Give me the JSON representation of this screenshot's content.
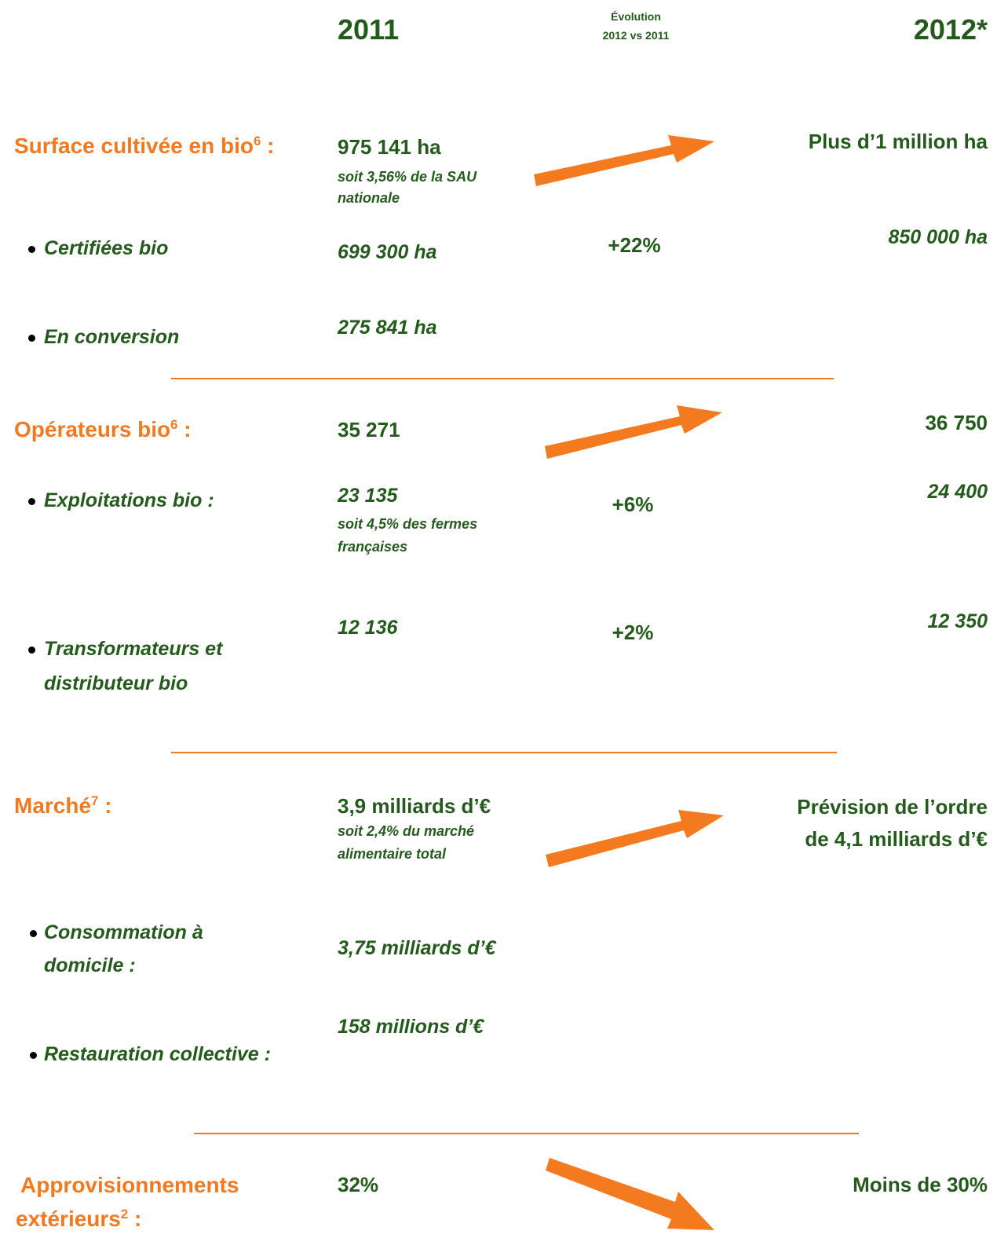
{
  "header": {
    "year_2011": "2011",
    "evolution": [
      "Évolution",
      "2012 vs 2011"
    ],
    "year_2012": "2012*"
  },
  "sections": [
    {
      "title": {
        "lines": [
          "Surface cultivée en bio"
        ],
        "sup": "6",
        "suffix": " :"
      },
      "value_2011": "975 141 ha",
      "note_2011": [
        "soit 3,56% de la SAU",
        "nationale"
      ],
      "value_2012": [
        "Plus d’1 million ha"
      ],
      "items": [
        {
          "label": [
            "Certifiées bio"
          ],
          "value_2011": "699 300 ha",
          "evolution": "+22%",
          "value_2012": "850 000 ha"
        },
        {
          "label": [
            "En conversion"
          ],
          "value_2011": "275 841 ha"
        }
      ]
    },
    {
      "title": {
        "lines": [
          "Opérateurs bio"
        ],
        "sup": "6",
        "suffix": " :"
      },
      "value_2011": "35 271",
      "value_2012": [
        "36 750"
      ],
      "items": [
        {
          "label": [
            "Exploitations bio :"
          ],
          "value_2011": "23 135",
          "note_2011": [
            "soit 4,5% des fermes",
            "françaises"
          ],
          "evolution": "+6%",
          "value_2012": "24 400"
        },
        {
          "label": [
            "Transformateurs et",
            "distributeur bio"
          ],
          "value_2011": "12 136",
          "evolution": "+2%",
          "value_2012": "12 350"
        }
      ]
    },
    {
      "title": {
        "lines": [
          "Marché"
        ],
        "sup": "7",
        "suffix": " :"
      },
      "value_2011": "3,9 milliards d’€",
      "note_2011": [
        "soit 2,4% du marché",
        "alimentaire total"
      ],
      "value_2012": [
        "Prévision de l’ordre",
        "de 4,1 milliards d’€"
      ],
      "items": [
        {
          "label": [
            "Consommation à",
            "domicile :"
          ],
          "value_2011": "3,75 milliards d’€"
        },
        {
          "label": [
            "Restauration collective :"
          ],
          "value_2011": "158 millions d’€"
        }
      ]
    },
    {
      "title": {
        "lines": [
          "Approvisionnements",
          "extérieurs"
        ],
        "sup": "2",
        "suffix": " :"
      },
      "value_2011": "32%",
      "value_2012": [
        "Moins de 30%"
      ]
    }
  ]
}
